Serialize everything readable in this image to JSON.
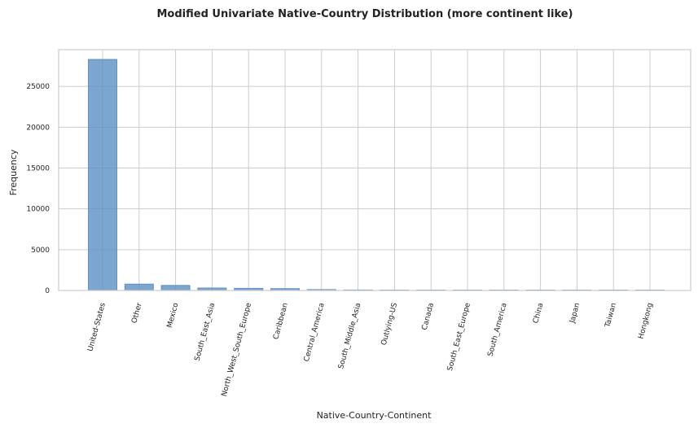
{
  "chart_data": {
    "type": "bar",
    "title": "Modified Univariate Native-Country Distribution (more continent like)",
    "xlabel": "Native-Country-Continent",
    "ylabel": "Frequency",
    "categories": [
      "United-States",
      "Other",
      "Mexico",
      "South_East_Asia",
      "North_West_South_Europe",
      "Caribbean",
      "Central_America",
      "South_Middle_Asia",
      "Outlying-US",
      "Canada",
      "South_East_Europe",
      "South_America",
      "China",
      "Japan",
      "Taiwan",
      "Hongkong"
    ],
    "values": [
      28300,
      780,
      620,
      300,
      260,
      230,
      110,
      60,
      40,
      30,
      25,
      20,
      15,
      10,
      8,
      5
    ],
    "ylim": [
      0,
      29500
    ],
    "yticks": [
      0,
      5000,
      10000,
      15000,
      20000,
      25000
    ],
    "ytick_labels": [
      "0",
      "5000",
      "10000",
      "15000",
      "20000",
      "25000"
    ],
    "grid": true,
    "colors": {
      "bar": "#5f93c2",
      "grid": "#cccccc"
    }
  }
}
